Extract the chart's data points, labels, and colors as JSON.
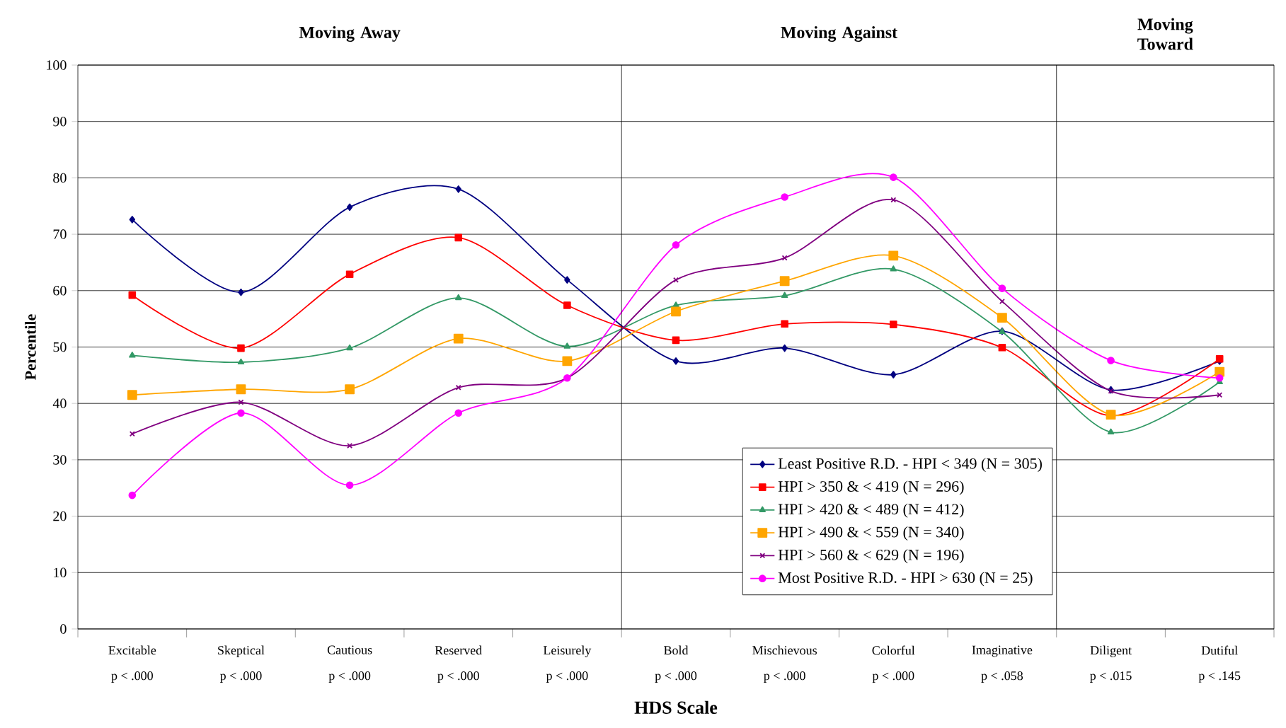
{
  "chart_data": {
    "type": "line",
    "xlabel": "HDS Scale",
    "ylabel": "Percentile",
    "categories": [
      "Excitable",
      "Skeptical",
      "Cautious",
      "Reserved",
      "Leisurely",
      "Bold",
      "Mischievous",
      "Colorful",
      "Imaginative",
      "Diligent",
      "Dutiful"
    ],
    "series": [
      {
        "name": "Least Positive R.D. - HPI < 349 (N = 305)",
        "color": "#000080",
        "marker": "diamond",
        "values": [
          72.6,
          59.7,
          74.8,
          78.0,
          61.9,
          47.5,
          49.8,
          45.1,
          52.8,
          42.4,
          47.5
        ]
      },
      {
        "name": "HPI > 350 & < 419 (N = 296)",
        "color": "#ff0000",
        "marker": "square",
        "values": [
          59.2,
          49.8,
          62.9,
          69.4,
          57.4,
          51.2,
          54.1,
          54.0,
          49.9,
          37.8,
          47.9
        ]
      },
      {
        "name": "HPI > 420 & < 489 (N = 412)",
        "color": "#339966",
        "marker": "triangle",
        "values": [
          48.5,
          47.3,
          49.8,
          58.7,
          50.1,
          57.4,
          59.1,
          63.8,
          52.7,
          34.9,
          43.8
        ]
      },
      {
        "name": "HPI > 490 & < 559 (N = 340)",
        "color": "#ffa500",
        "marker": "square",
        "values": [
          41.5,
          42.5,
          42.5,
          51.5,
          47.5,
          56.3,
          61.7,
          66.2,
          55.2,
          38.0,
          45.6
        ]
      },
      {
        "name": "HPI > 560 & < 629 (N = 196)",
        "color": "#800080",
        "marker": "cross",
        "values": [
          34.6,
          40.2,
          32.5,
          42.8,
          44.5,
          61.9,
          65.8,
          76.1,
          58.1,
          42.2,
          41.5
        ]
      },
      {
        "name": "Most Positive R.D. -  HPI > 630 (N = 25)",
        "color": "#ff00ff",
        "marker": "circle",
        "values": [
          23.7,
          38.3,
          25.5,
          38.3,
          44.5,
          68.1,
          76.6,
          80.1,
          60.4,
          47.6,
          44.5
        ]
      }
    ],
    "ylim": [
      0,
      100
    ],
    "yticks": [
      0,
      10,
      20,
      30,
      40,
      50,
      60,
      70,
      80,
      90,
      100
    ],
    "grid": "y",
    "legend": "bottom right",
    "annotations": [
      "Moving Away",
      "Moving Against",
      "Moving Toward",
      "p < .000",
      "p < .000",
      "p < .000",
      "p < .000",
      "p < .000",
      "p < .000",
      "p < .000",
      "p < .000",
      "p < .058",
      "p < .015",
      "p < .145"
    ]
  }
}
